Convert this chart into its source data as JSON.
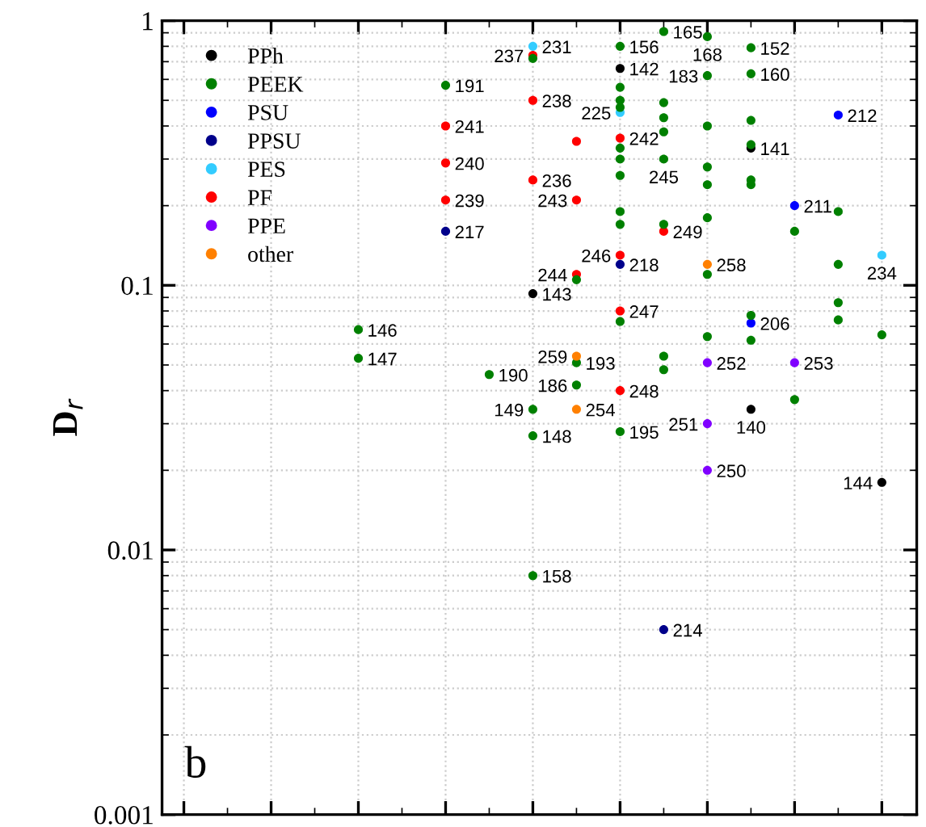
{
  "chart_data": {
    "type": "scatter",
    "ylabel": "D$_{r}$",
    "log": "y",
    "grid": true,
    "legend": "top left",
    "marker": "circle",
    "tick_labels": "y",
    "categories": [
      null,
      null,
      null,
      null,
      null,
      null,
      null,
      null,
      null,
      null,
      null,
      null,
      null,
      null,
      null,
      null,
      null
    ],
    "ylim": [
      0.001,
      1
    ],
    "yticks": [
      0.001,
      0.01,
      0.1,
      1
    ],
    "series": [
      {
        "name": "PPh",
        "color": "#000000",
        "values": [
          null,
          null,
          null,
          null,
          null,
          null,
          null,
          null,
          0.093,
          null,
          0.66,
          null,
          null,
          0.33,
          null,
          null,
          0.018
        ]
      },
      {
        "color": "#000000",
        "values": [
          null,
          null,
          null,
          null,
          null,
          null,
          null,
          null,
          null,
          null,
          null,
          null,
          null,
          0.034,
          null,
          null,
          null
        ]
      },
      {
        "name": "PEEK",
        "color": "#008000",
        "values": [
          null,
          null,
          null,
          null,
          0.068,
          null,
          0.57,
          0.046,
          0.034,
          0.051,
          0.8,
          0.91,
          0.87,
          0.79,
          null,
          null,
          null
        ]
      },
      {
        "color": "#008000",
        "values": [
          null,
          null,
          null,
          null,
          0.053,
          null,
          null,
          null,
          0.027,
          0.042,
          0.028,
          0.3,
          0.62,
          0.63,
          null,
          null,
          null
        ]
      },
      {
        "color": "#008000",
        "values": [
          null,
          null,
          null,
          null,
          null,
          null,
          null,
          null,
          0.008,
          null,
          null,
          null,
          null,
          null,
          null,
          null,
          null
        ]
      },
      {
        "name": "PSU",
        "color": "#0000ff",
        "values": [
          null,
          null,
          null,
          null,
          null,
          null,
          null,
          null,
          null,
          null,
          null,
          null,
          null,
          0.072,
          0.2,
          0.44,
          null
        ]
      },
      {
        "name": "PPSU",
        "color": "#00008b",
        "values": [
          null,
          null,
          null,
          null,
          null,
          null,
          0.16,
          null,
          null,
          null,
          0.12,
          0.005,
          null,
          null,
          null,
          null,
          null
        ]
      },
      {
        "name": "PES",
        "color": "#33ccff",
        "values": [
          null,
          null,
          null,
          null,
          null,
          null,
          null,
          null,
          0.8,
          null,
          0.45,
          null,
          null,
          null,
          null,
          null,
          0.13
        ]
      },
      {
        "name": "PF",
        "color": "#ff0000",
        "values": [
          null,
          null,
          null,
          null,
          null,
          null,
          0.4,
          null,
          0.74,
          0.21,
          0.36,
          0.16,
          null,
          null,
          null,
          null,
          null
        ]
      },
      {
        "color": "#ff0000",
        "values": [
          null,
          null,
          null,
          null,
          null,
          null,
          0.29,
          null,
          0.5,
          0.11,
          0.13,
          null,
          null,
          null,
          null,
          null,
          null
        ]
      },
      {
        "color": "#ff0000",
        "values": [
          null,
          null,
          null,
          null,
          null,
          null,
          0.21,
          null,
          0.25,
          null,
          0.08,
          null,
          null,
          null,
          null,
          null,
          null
        ]
      },
      {
        "color": "#ff0000",
        "values": [
          null,
          null,
          null,
          null,
          null,
          null,
          null,
          null,
          null,
          null,
          0.04,
          null,
          null,
          null,
          null,
          null,
          null
        ]
      },
      {
        "name": "PPE",
        "color": "#8000ff",
        "values": [
          null,
          null,
          null,
          null,
          null,
          null,
          null,
          null,
          null,
          null,
          null,
          null,
          0.051,
          null,
          0.051,
          null,
          null
        ]
      },
      {
        "color": "#8000ff",
        "values": [
          null,
          null,
          null,
          null,
          null,
          null,
          null,
          null,
          null,
          null,
          null,
          null,
          0.03,
          null,
          null,
          null,
          null
        ]
      },
      {
        "color": "#8000ff",
        "values": [
          null,
          null,
          null,
          null,
          null,
          null,
          null,
          null,
          null,
          null,
          null,
          null,
          0.02,
          null,
          null,
          null,
          null
        ]
      },
      {
        "name": "other",
        "color": "#ff8000",
        "values": [
          null,
          null,
          null,
          null,
          null,
          null,
          null,
          null,
          null,
          0.054,
          null,
          null,
          0.12,
          null,
          null,
          null,
          null
        ]
      },
      {
        "color": "#ff8000",
        "values": [
          null,
          null,
          null,
          null,
          null,
          null,
          null,
          null,
          null,
          0.034,
          null,
          null,
          null,
          null,
          null,
          null,
          null
        ]
      },
      {
        "color": "#008000",
        "values": [
          null,
          null,
          null,
          null,
          null,
          null,
          null,
          null,
          0.72,
          0.105,
          0.56,
          0.49,
          0.4,
          0.42,
          0.16,
          0.19,
          0.065
        ]
      },
      {
        "color": "#008000",
        "values": [
          null,
          null,
          null,
          null,
          null,
          null,
          null,
          null,
          null,
          null,
          0.5,
          0.43,
          0.28,
          0.34,
          0.037,
          0.12,
          null
        ]
      },
      {
        "color": "#008000",
        "values": [
          null,
          null,
          null,
          null,
          null,
          null,
          null,
          null,
          null,
          null,
          0.47,
          0.38,
          0.24,
          0.25,
          null,
          0.086,
          null
        ]
      },
      {
        "color": "#008000",
        "values": [
          null,
          null,
          null,
          null,
          null,
          null,
          null,
          null,
          null,
          null,
          0.33,
          0.17,
          0.18,
          0.24,
          null,
          0.074,
          null
        ]
      },
      {
        "color": "#008000",
        "values": [
          null,
          null,
          null,
          null,
          null,
          null,
          null,
          null,
          null,
          null,
          0.3,
          0.054,
          0.11,
          0.077,
          null,
          null,
          null
        ]
      },
      {
        "color": "#008000",
        "values": [
          null,
          null,
          null,
          null,
          null,
          null,
          null,
          null,
          null,
          null,
          0.26,
          0.048,
          0.064,
          0.062,
          null,
          null,
          null
        ]
      },
      {
        "color": "#008000",
        "values": [
          null,
          null,
          null,
          null,
          null,
          null,
          null,
          null,
          null,
          null,
          0.19,
          null,
          null,
          null,
          null,
          null,
          null
        ]
      },
      {
        "color": "#008000",
        "values": [
          null,
          null,
          null,
          null,
          null,
          null,
          null,
          null,
          null,
          null,
          0.17,
          null,
          null,
          null,
          null,
          null,
          null
        ]
      },
      {
        "color": "#008000",
        "values": [
          null,
          null,
          null,
          null,
          null,
          null,
          null,
          null,
          null,
          null,
          0.073,
          null,
          null,
          null,
          null,
          null,
          null
        ]
      },
      {
        "color": "#ff0000",
        "values": [
          null,
          null,
          null,
          null,
          null,
          null,
          null,
          null,
          null,
          0.35,
          null,
          null,
          null,
          null,
          null,
          null,
          null
        ]
      }
    ],
    "annotations": [
      "143",
      "142",
      "141",
      "144",
      "140",
      "146",
      "191",
      "190",
      "149",
      "193",
      "156",
      "165",
      "168",
      "152",
      "147",
      "148",
      "186",
      "195",
      "245",
      "183",
      "160",
      "158",
      "206",
      "211",
      "212",
      "217",
      "218",
      "214",
      "231",
      "225",
      "234",
      "241",
      "237",
      "243",
      "242",
      "249",
      "240",
      "238",
      "244",
      "246",
      "239",
      "236",
      "247",
      "248",
      "252",
      "253",
      "251",
      "250",
      "259",
      "258",
      "254",
      "b"
    ]
  }
}
